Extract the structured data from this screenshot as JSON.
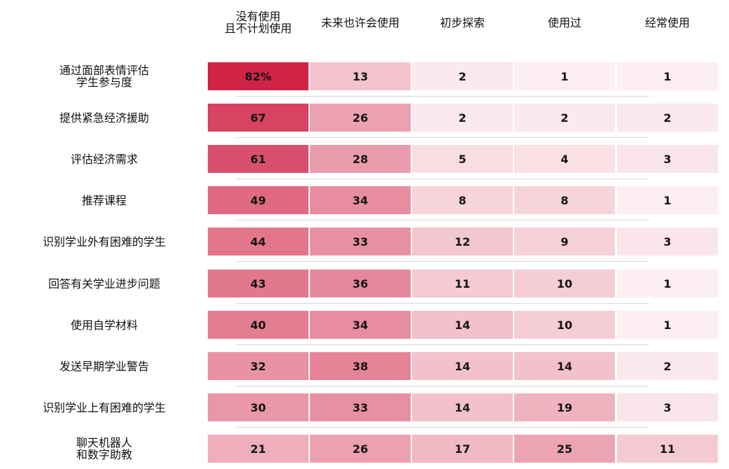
{
  "chart_data": {
    "type": "heatmap",
    "columns": [
      "没有使用\n且不计划使用",
      "未来也许会使用",
      "初步探索",
      "使用过",
      "经常使用"
    ],
    "rows": [
      {
        "label": "通过面部表情评估\n学生参与度",
        "values": [
          82,
          13,
          2,
          1,
          1
        ],
        "display": [
          "82%",
          "13",
          "2",
          "1",
          "1"
        ]
      },
      {
        "label": "提供紧急经济援助",
        "values": [
          67,
          26,
          2,
          2,
          2
        ],
        "display": [
          "67",
          "26",
          "2",
          "2",
          "2"
        ]
      },
      {
        "label": "评估经济需求",
        "values": [
          61,
          28,
          5,
          4,
          3
        ],
        "display": [
          "61",
          "28",
          "5",
          "4",
          "3"
        ]
      },
      {
        "label": "推荐课程",
        "values": [
          49,
          34,
          8,
          8,
          1
        ],
        "display": [
          "49",
          "34",
          "8",
          "8",
          "1"
        ]
      },
      {
        "label": "识别学业外有困难的学生",
        "values": [
          44,
          33,
          12,
          9,
          3
        ],
        "display": [
          "44",
          "33",
          "12",
          "9",
          "3"
        ]
      },
      {
        "label": "回答有关学业进步问题",
        "values": [
          43,
          36,
          11,
          10,
          1
        ],
        "display": [
          "43",
          "36",
          "11",
          "10",
          "1"
        ]
      },
      {
        "label": "使用自学材料",
        "values": [
          40,
          34,
          14,
          10,
          1
        ],
        "display": [
          "40",
          "34",
          "14",
          "10",
          "1"
        ]
      },
      {
        "label": "发送早期学业警告",
        "values": [
          32,
          38,
          14,
          14,
          2
        ],
        "display": [
          "32",
          "38",
          "14",
          "14",
          "2"
        ]
      },
      {
        "label": "识别学业上有困难的学生",
        "values": [
          30,
          33,
          14,
          19,
          3
        ],
        "display": [
          "30",
          "33",
          "14",
          "19",
          "3"
        ]
      },
      {
        "label": "聊天机器人\n和数字助教",
        "values": [
          21,
          26,
          17,
          25,
          11
        ],
        "display": [
          "21",
          "26",
          "17",
          "25",
          "11"
        ]
      }
    ],
    "value_unit": "%",
    "color_scale": {
      "low": "#fdf4f6",
      "high": "#d02447"
    }
  }
}
